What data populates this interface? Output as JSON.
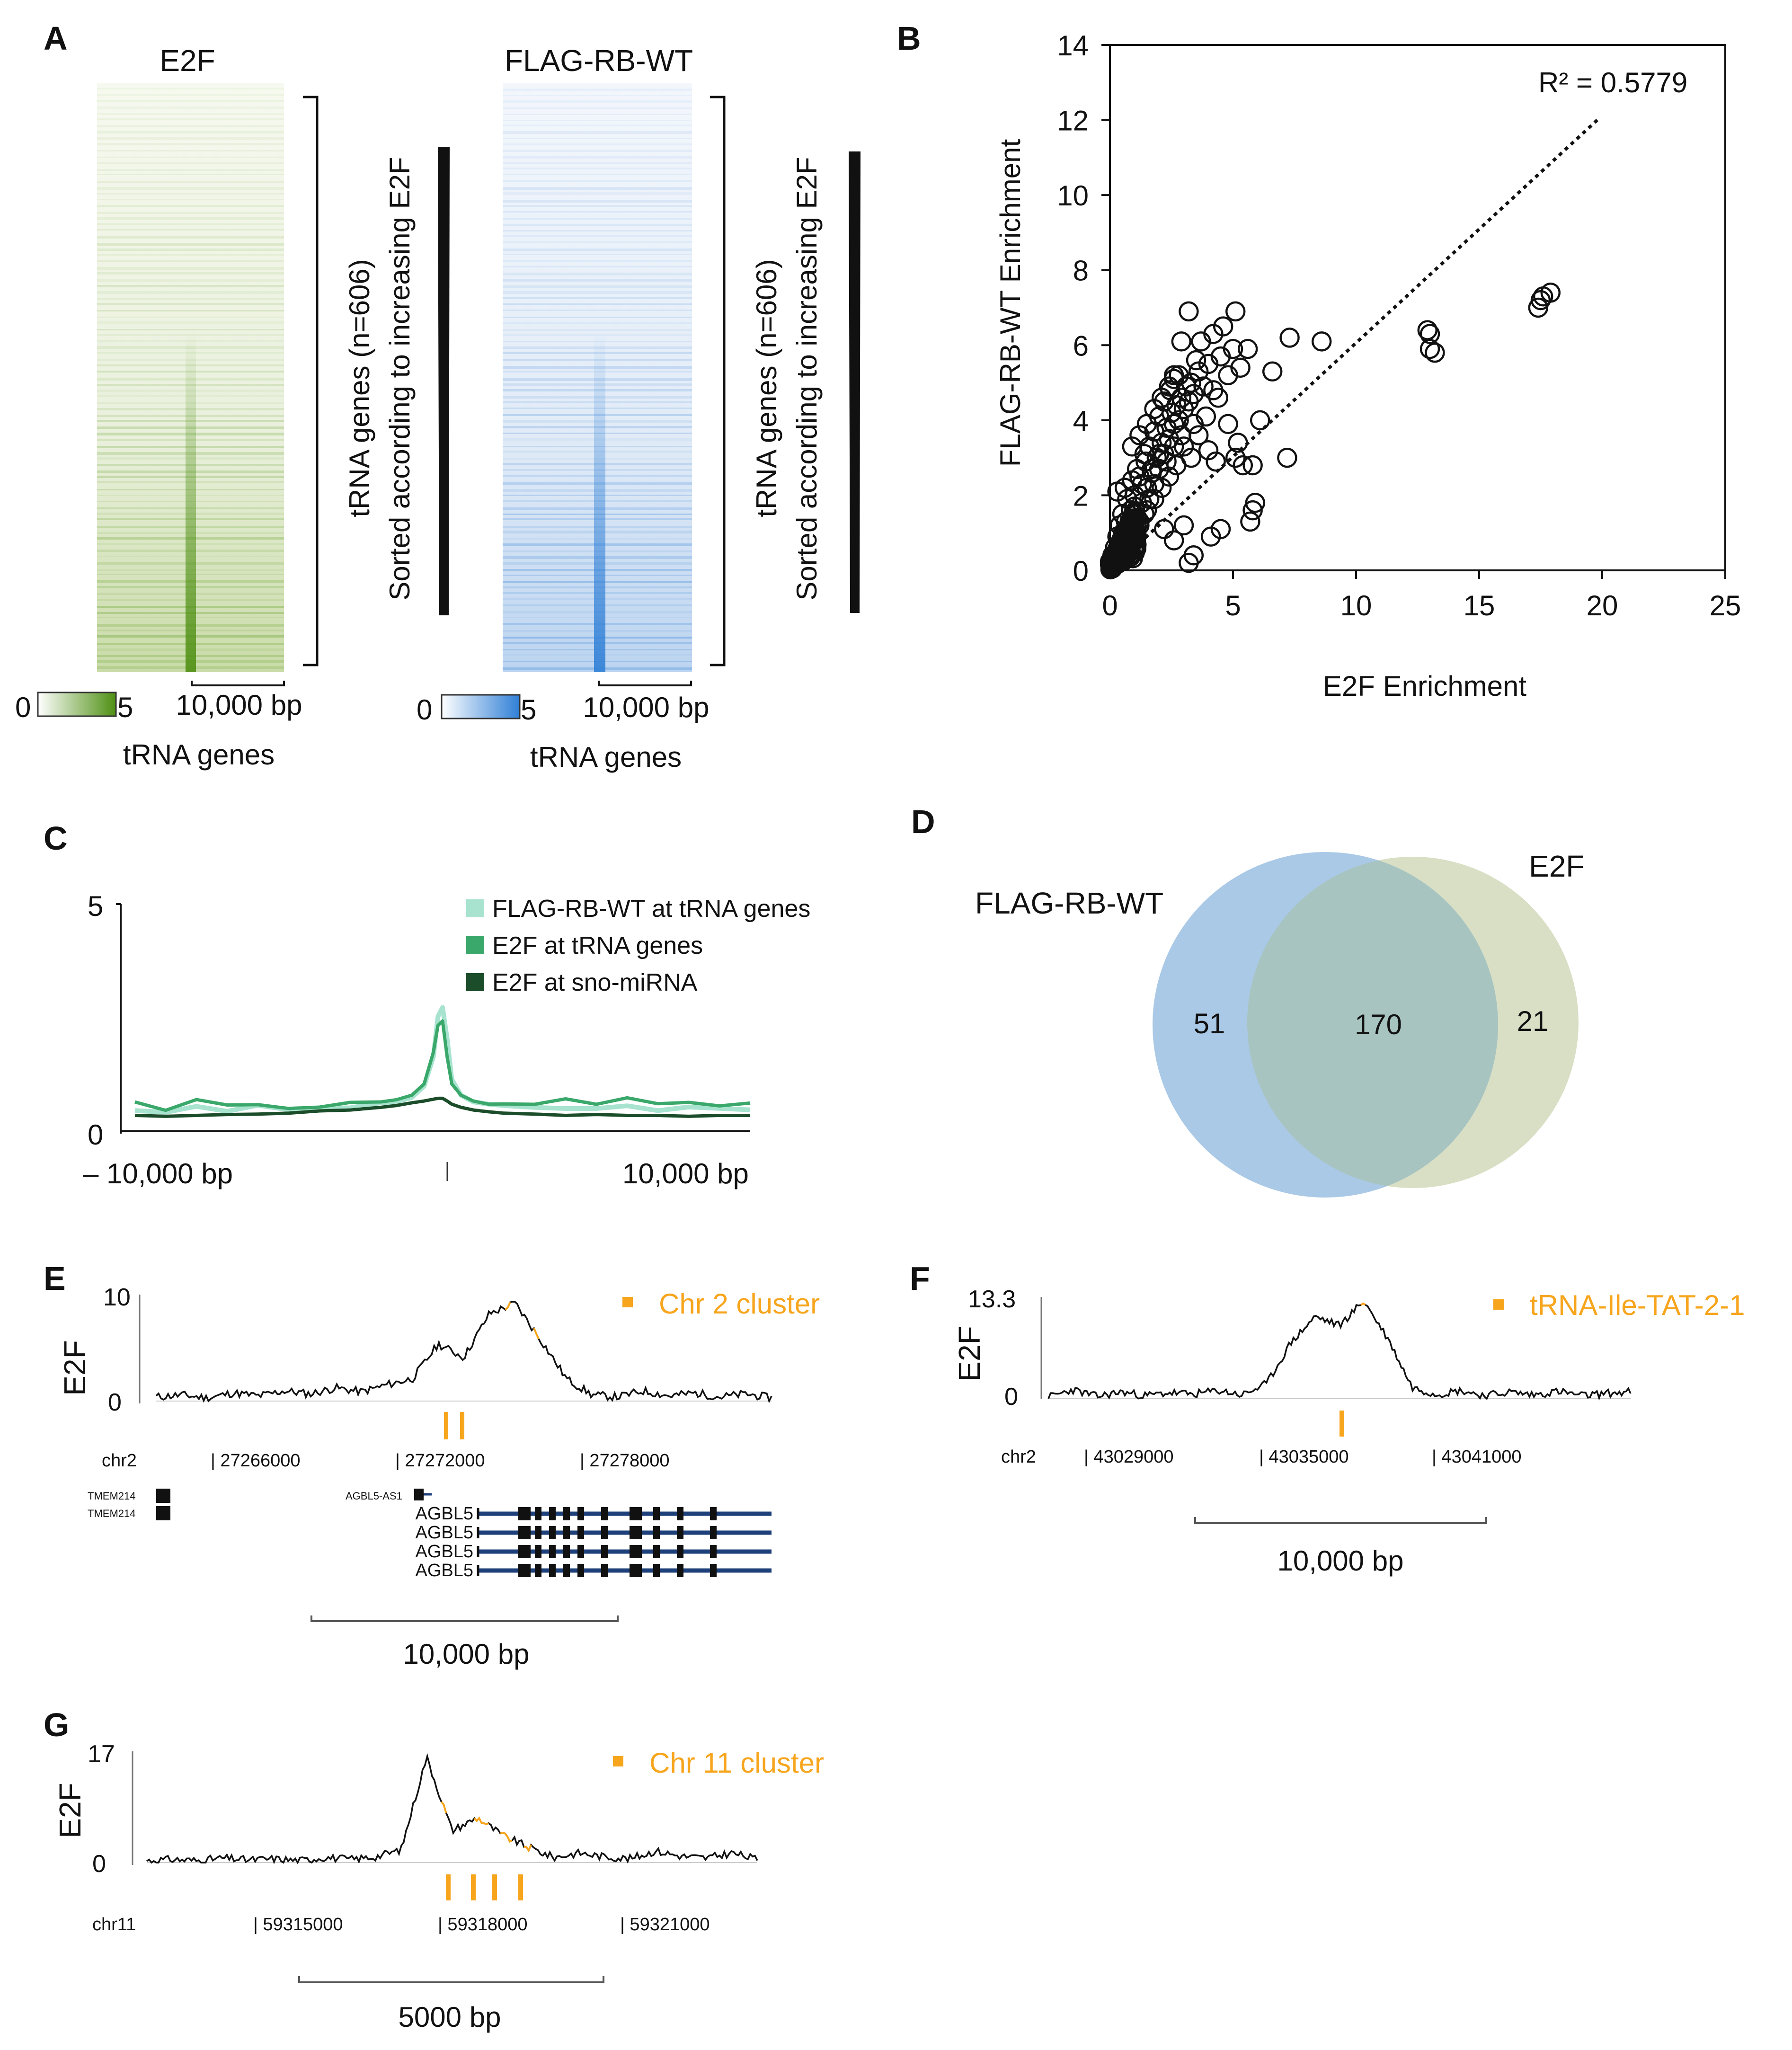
{
  "colors": {
    "e2f_green": "#4e8f12",
    "rb_blue": "#2f7fd6",
    "orange": "#f7a51d",
    "venn_blue": "#aac9e6",
    "venn_green": "#d8dfc4",
    "venn_overlap": "#a7c4c0",
    "profile_light": "#a8e3cf",
    "profile_mid": "#3aa86a",
    "profile_dark": "#1c4d2a",
    "gene_blue": "#1d3f7a"
  },
  "panels": {
    "a": "A",
    "b": "B",
    "c": "C",
    "d": "D",
    "e": "E",
    "f": "F",
    "g": "G"
  },
  "panel_a": {
    "left_title": "E2F",
    "right_title": "FLAG-RB-WT",
    "side_label_line1": "tRNA genes (n=606)",
    "side_label_line2": "Sorted according to increasing E2F",
    "scale_min": "0",
    "scale_max": "5",
    "scalebar": "10,000 bp",
    "xlabel": "tRNA genes"
  },
  "chart_data": [
    {
      "type": "scatter",
      "id": "panel_b",
      "xlabel": "E2F Enrichment",
      "ylabel": "FLAG-RB-WT Enrichment",
      "xlim": [
        0,
        25
      ],
      "ylim": [
        0,
        14
      ],
      "xticks": [
        "0",
        "5",
        "10",
        "15",
        "20",
        "25"
      ],
      "yticks": [
        "0",
        "2",
        "4",
        "6",
        "8",
        "10",
        "12",
        "14"
      ],
      "annotation": "R² = 0.5779",
      "trendline": {
        "x0": 0,
        "y0": 0,
        "x1": 19.8,
        "y1": 12.0
      },
      "points": [
        [
          0.1,
          0.05
        ],
        [
          0.15,
          0.1
        ],
        [
          0.2,
          0.2
        ],
        [
          0.25,
          0.15
        ],
        [
          0.3,
          0.3
        ],
        [
          0.1,
          0.4
        ],
        [
          0.35,
          0.2
        ],
        [
          0.4,
          0.5
        ],
        [
          0.2,
          0.6
        ],
        [
          0.5,
          0.3
        ],
        [
          0.45,
          0.7
        ],
        [
          0.6,
          0.45
        ],
        [
          0.3,
          0.9
        ],
        [
          0.7,
          0.8
        ],
        [
          0.55,
          1.0
        ],
        [
          0.8,
          0.6
        ],
        [
          0.9,
          1.1
        ],
        [
          0.65,
          1.3
        ],
        [
          1.0,
          0.9
        ],
        [
          1.1,
          1.4
        ],
        [
          0.85,
          1.6
        ],
        [
          1.2,
          1.2
        ],
        [
          1.3,
          1.8
        ],
        [
          1.0,
          2.0
        ],
        [
          1.4,
          1.5
        ],
        [
          1.5,
          2.2
        ],
        [
          1.2,
          2.5
        ],
        [
          1.6,
          1.9
        ],
        [
          1.7,
          2.6
        ],
        [
          1.45,
          2.9
        ],
        [
          1.8,
          2.3
        ],
        [
          1.9,
          3.0
        ],
        [
          1.6,
          3.3
        ],
        [
          2.0,
          2.7
        ],
        [
          2.1,
          3.4
        ],
        [
          1.8,
          3.7
        ],
        [
          2.2,
          3.1
        ],
        [
          2.3,
          3.8
        ],
        [
          2.0,
          4.1
        ],
        [
          2.4,
          3.5
        ],
        [
          2.5,
          4.2
        ],
        [
          2.2,
          4.5
        ],
        [
          2.6,
          3.9
        ],
        [
          2.7,
          4.4
        ],
        [
          2.45,
          4.8
        ],
        [
          2.8,
          4.0
        ],
        [
          2.9,
          4.6
        ],
        [
          2.6,
          5.1
        ],
        [
          3.0,
          4.3
        ],
        [
          3.1,
          4.9
        ],
        [
          2.8,
          5.2
        ],
        [
          3.2,
          4.5
        ],
        [
          3.3,
          5.0
        ],
        [
          3.5,
          5.6
        ],
        [
          3.4,
          4.7
        ],
        [
          3.6,
          5.3
        ],
        [
          3.8,
          4.9
        ],
        [
          4.0,
          5.5
        ],
        [
          4.2,
          4.8
        ],
        [
          4.5,
          5.7
        ],
        [
          4.8,
          5.2
        ],
        [
          5.0,
          5.9
        ],
        [
          5.3,
          5.4
        ],
        [
          5.6,
          5.9
        ],
        [
          4.6,
          6.5
        ],
        [
          3.2,
          6.9
        ],
        [
          4.2,
          6.3
        ],
        [
          2.9,
          6.1
        ],
        [
          5.1,
          6.9
        ],
        [
          3.7,
          6.1
        ],
        [
          2.6,
          5.2
        ],
        [
          1.4,
          3.1
        ],
        [
          1.1,
          2.7
        ],
        [
          0.9,
          2.4
        ],
        [
          0.7,
          1.9
        ],
        [
          0.5,
          1.5
        ],
        [
          0.4,
          1.2
        ],
        [
          0.3,
          2.1
        ],
        [
          0.6,
          2.2
        ],
        [
          0.9,
          3.3
        ],
        [
          1.2,
          3.6
        ],
        [
          1.5,
          3.9
        ],
        [
          1.8,
          4.3
        ],
        [
          2.1,
          4.6
        ],
        [
          2.4,
          4.9
        ],
        [
          3.0,
          3.3
        ],
        [
          3.3,
          3.0
        ],
        [
          3.6,
          3.6
        ],
        [
          2.7,
          2.8
        ],
        [
          2.4,
          2.5
        ],
        [
          2.1,
          2.2
        ],
        [
          1.8,
          1.9
        ],
        [
          1.5,
          1.6
        ],
        [
          1.2,
          1.3
        ],
        [
          0.9,
          1.0
        ],
        [
          2.2,
          1.1
        ],
        [
          2.6,
          0.8
        ],
        [
          3.0,
          1.2
        ],
        [
          3.4,
          0.4
        ],
        [
          3.2,
          0.2
        ],
        [
          4.1,
          0.9
        ],
        [
          4.5,
          1.1
        ],
        [
          5.7,
          1.3
        ],
        [
          5.8,
          1.6
        ],
        [
          5.9,
          1.8
        ],
        [
          4.3,
          2.9
        ],
        [
          4.0,
          3.2
        ],
        [
          5.1,
          3.0
        ],
        [
          5.4,
          2.8
        ],
        [
          5.8,
          2.8
        ],
        [
          6.1,
          4.0
        ],
        [
          6.6,
          5.3
        ],
        [
          7.3,
          6.2
        ],
        [
          8.6,
          6.1
        ],
        [
          7.2,
          3.0
        ],
        [
          5.2,
          3.4
        ],
        [
          4.8,
          3.9
        ],
        [
          4.4,
          4.6
        ],
        [
          3.9,
          4.1
        ],
        [
          3.4,
          3.9
        ],
        [
          2.9,
          3.6
        ],
        [
          2.6,
          3.3
        ],
        [
          2.3,
          2.9
        ],
        [
          2.0,
          3.1
        ],
        [
          1.7,
          2.7
        ],
        [
          1.3,
          2.3
        ],
        [
          1.0,
          1.7
        ],
        [
          0.8,
          1.3
        ],
        [
          0.6,
          0.9
        ],
        [
          0.5,
          0.6
        ],
        [
          12.9,
          6.4
        ],
        [
          13.0,
          5.9
        ],
        [
          13.2,
          5.8
        ],
        [
          13.0,
          6.3
        ],
        [
          17.4,
          7.0
        ],
        [
          17.6,
          7.3
        ],
        [
          17.9,
          7.4
        ],
        [
          17.5,
          7.2
        ]
      ]
    },
    {
      "type": "line",
      "id": "panel_c",
      "ylim": [
        0,
        5
      ],
      "yticks": [
        "0",
        "5"
      ],
      "xticks": [
        "– 10,000 bp",
        "10,000 bp"
      ],
      "legend": [
        "FLAG-RB-WT at tRNA genes",
        "E2F at tRNA genes",
        "E2F at sno-miRNA"
      ],
      "x": [
        -10000,
        -9000,
        -8000,
        -7000,
        -6000,
        -5000,
        -4000,
        -3000,
        -2000,
        -1500,
        -1000,
        -600,
        -300,
        -150,
        0,
        150,
        300,
        600,
        1000,
        1500,
        2000,
        3000,
        4000,
        5000,
        6000,
        7000,
        8000,
        9000,
        10000
      ],
      "series": [
        {
          "name": "FLAG-RB-WT at tRNA genes",
          "values": [
            0.45,
            0.4,
            0.5,
            0.42,
            0.48,
            0.4,
            0.45,
            0.5,
            0.55,
            0.6,
            0.7,
            0.95,
            1.6,
            2.5,
            2.7,
            2.0,
            1.1,
            0.75,
            0.6,
            0.55,
            0.5,
            0.45,
            0.5,
            0.42,
            0.48,
            0.45,
            0.5,
            0.42,
            0.45
          ]
        },
        {
          "name": "E2F at tRNA genes",
          "values": [
            0.55,
            0.45,
            0.6,
            0.5,
            0.55,
            0.45,
            0.5,
            0.55,
            0.6,
            0.65,
            0.75,
            1.0,
            1.7,
            2.3,
            2.4,
            1.6,
            1.0,
            0.75,
            0.62,
            0.55,
            0.6,
            0.5,
            0.7,
            0.55,
            0.75,
            0.6,
            0.55,
            0.5,
            0.55
          ]
        },
        {
          "name": "E2F at sno-miRNA",
          "values": [
            0.3,
            0.28,
            0.3,
            0.32,
            0.33,
            0.35,
            0.4,
            0.42,
            0.48,
            0.52,
            0.58,
            0.62,
            0.66,
            0.68,
            0.68,
            0.62,
            0.55,
            0.48,
            0.42,
            0.38,
            0.35,
            0.33,
            0.3,
            0.32,
            0.3,
            0.3,
            0.28,
            0.3,
            0.3
          ]
        }
      ]
    },
    {
      "type": "line",
      "id": "panel_e",
      "ylabel": "E2F",
      "ylim": [
        0,
        10
      ],
      "yticks": [
        "0",
        "10"
      ],
      "peak_values": [
        0.4,
        0.6,
        0.3,
        0.8,
        0.5,
        1.0,
        0.7,
        1.3,
        0.9,
        1.6,
        2.2,
        5.6,
        4.3,
        8.6,
        9.6,
        6.0,
        2.2,
        0.6,
        0.4,
        1.0,
        0.5,
        0.8,
        0.4,
        0.7,
        0.3
      ]
    },
    {
      "type": "line",
      "id": "panel_f",
      "ylabel": "E2F",
      "ylim": [
        0,
        13.3
      ],
      "yticks": [
        "0",
        "13.3"
      ],
      "peak_values": [
        0.2,
        1.2,
        0.3,
        0.9,
        0.4,
        0.8,
        0.6,
        1.1,
        0.5,
        2.0,
        7.5,
        11.0,
        9.8,
        13.1,
        8.0,
        1.5,
        0.6,
        1.1,
        0.4,
        0.9,
        0.5,
        1.0,
        0.4,
        0.7,
        0.9
      ]
    },
    {
      "type": "line",
      "id": "panel_g",
      "ylabel": "E2F",
      "ylim": [
        0,
        17
      ],
      "yticks": [
        "0",
        "17"
      ],
      "peak_values": [
        0.3,
        0.5,
        0.3,
        0.7,
        0.4,
        0.6,
        0.3,
        0.8,
        0.5,
        0.9,
        2.0,
        16.5,
        5.0,
        7.0,
        4.2,
        2.4,
        0.8,
        1.5,
        0.9,
        0.6,
        1.8,
        1.0,
        0.7,
        1.5,
        0.5
      ]
    }
  ],
  "panel_d": {
    "left_label": "FLAG-RB-WT",
    "right_label": "E2F",
    "only_rb": "51",
    "overlap": "170",
    "only_e2f": "21"
  },
  "panel_e": {
    "legend": "Chr 2 cluster",
    "chrom": "chr2",
    "coords": [
      "| 27266000",
      "| 27272000",
      "| 27278000"
    ],
    "genes_left": [
      "TMEM214",
      "TMEM214"
    ],
    "gene_small": "AGBL5-AS1",
    "transcripts": [
      "AGBL5",
      "AGBL5",
      "AGBL5",
      "AGBL5"
    ],
    "scalebar": "10,000 bp"
  },
  "panel_f": {
    "legend": "tRNA-Ile-TAT-2-1",
    "chrom": "chr2",
    "coords": [
      "| 43029000",
      "| 43035000",
      "| 43041000"
    ],
    "scalebar": "10,000 bp"
  },
  "panel_g": {
    "legend": "Chr 11 cluster",
    "chrom": "chr11",
    "coords": [
      "| 59315000",
      "| 59318000",
      "| 59321000"
    ],
    "scalebar": "5000 bp"
  }
}
